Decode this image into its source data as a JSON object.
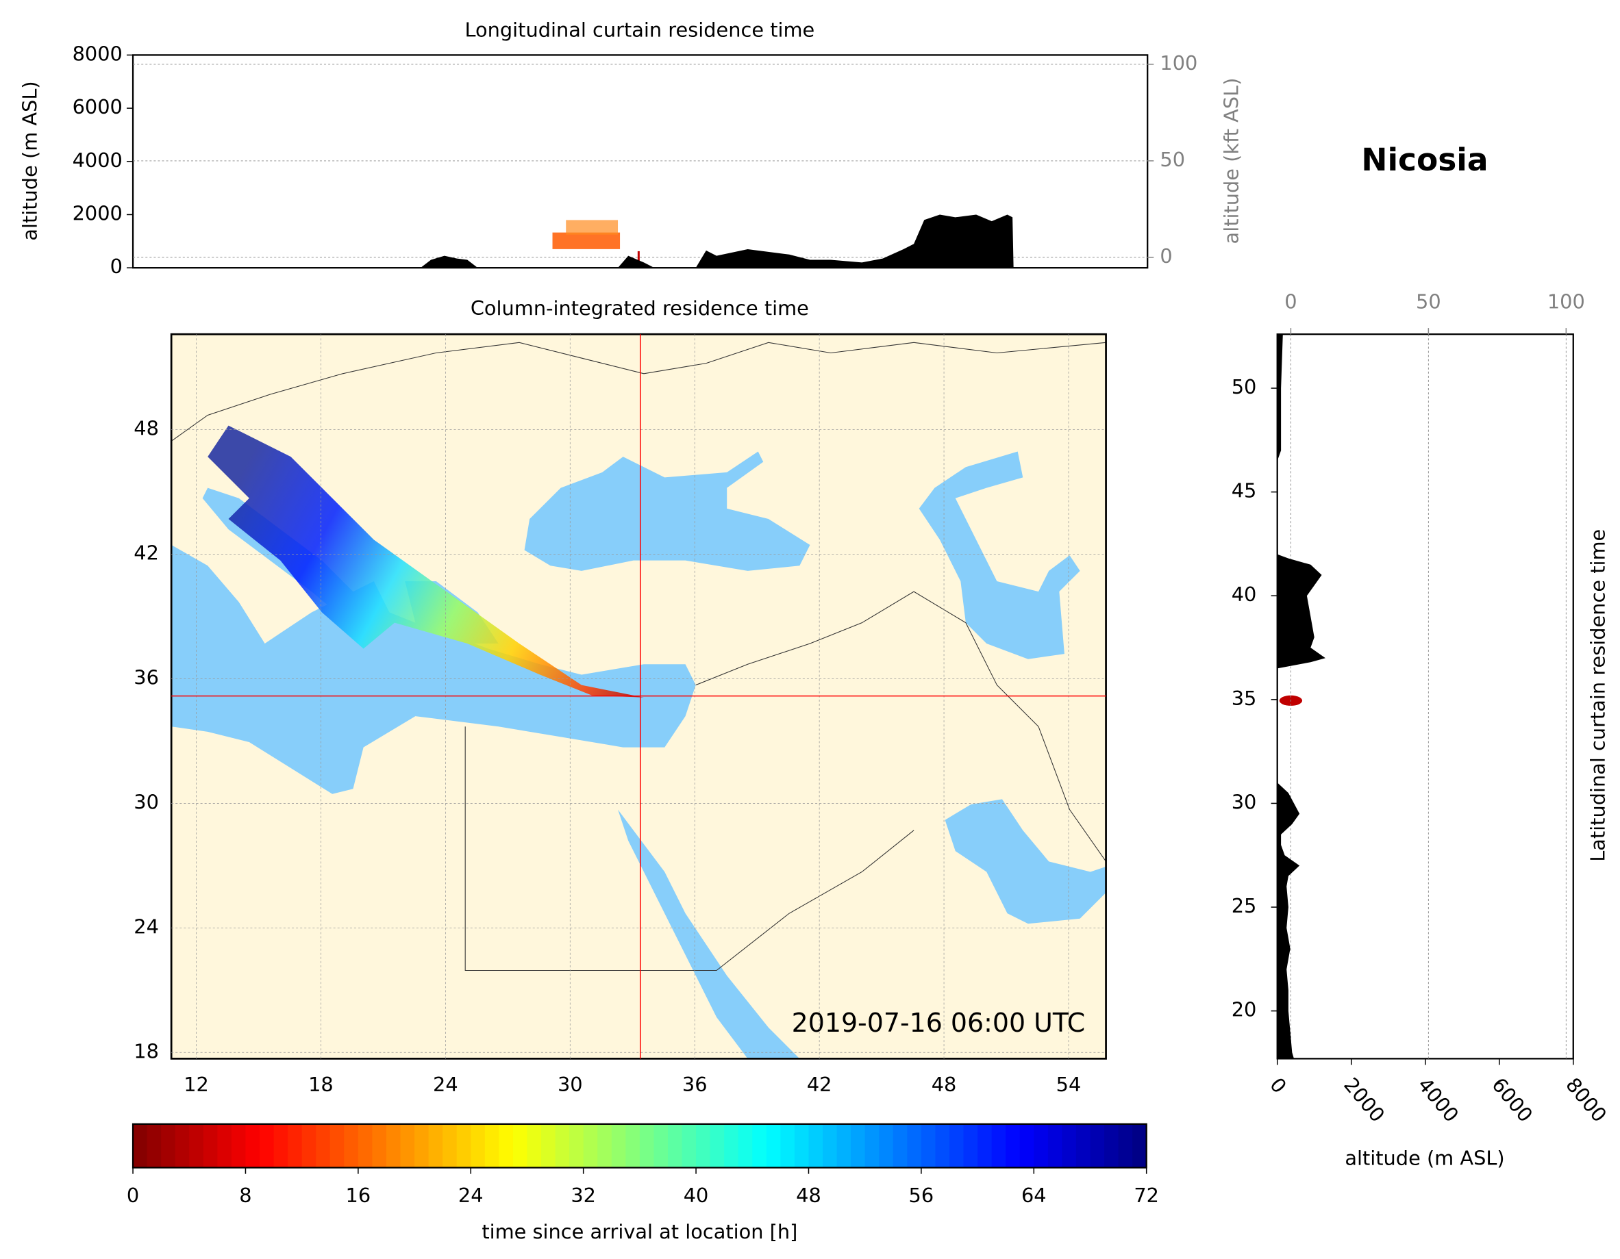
{
  "chart_data": [
    {
      "type": "area",
      "orientation": "vertical",
      "title": "Longitudinal curtain residence time",
      "ylabel": "altitude (m ASL)",
      "y2label": "altitude (kft ASL)",
      "xlim": [
        9.15,
        58.0
      ],
      "ylim": [
        0,
        8000
      ],
      "yticks": [
        0,
        2000,
        4000,
        6000,
        8000
      ],
      "y2lim": [
        -5.4,
        104.8
      ],
      "y2ticks": [
        0,
        50,
        100
      ],
      "grid": "y2",
      "color": "#000000",
      "x": [
        23.0,
        23.5,
        24.15,
        24.75,
        25.25,
        25.75,
        32.5,
        33.0,
        33.75,
        34.25,
        36.25,
        36.75,
        37.25,
        38.75,
        40.75,
        41.75,
        42.75,
        44.25,
        45.25,
        46.25,
        46.75,
        47.25,
        48.0,
        48.75,
        49.75,
        50.5,
        51.25,
        51.5,
        51.55
      ],
      "values": [
        0,
        300,
        450,
        350,
        300,
        0,
        0,
        450,
        200,
        0,
        0,
        650,
        450,
        700,
        500,
        300,
        300,
        200,
        350,
        700,
        900,
        1800,
        2000,
        1900,
        2000,
        1750,
        2000,
        1900,
        0
      ]
    },
    {
      "type": "map",
      "title": "Column-integrated residence time",
      "xlim": [
        10.8,
        55.8
      ],
      "ylim": [
        17.7,
        52.6
      ],
      "xticks": [
        12,
        18,
        24,
        30,
        36,
        42,
        48,
        54
      ],
      "yticks": [
        18,
        24,
        30,
        36,
        42,
        48
      ],
      "grid": true,
      "annotation": "2019-07-16 06:00 UTC",
      "location": {
        "name": "Nicosia",
        "x": 33.38,
        "y": 35.17,
        "color": "#ff0000"
      }
    },
    {
      "type": "area",
      "orientation": "horizontal",
      "title": "Latitudinal curtain residence time",
      "xlabel": "altitude (m ASL)",
      "xlim": [
        0,
        8000
      ],
      "xticks": [
        0,
        2000,
        4000,
        6000,
        8000
      ],
      "x2lim": [
        -4.9,
        102.6
      ],
      "x2ticks": [
        0,
        50,
        100
      ],
      "grid": "x2",
      "color": "#000000",
      "ylim": [
        17.7,
        52.6
      ],
      "yticks": [
        20,
        25,
        30,
        35,
        40,
        45,
        50
      ],
      "y": [
        52.6,
        50,
        47,
        46.5,
        42,
        41.8,
        41.5,
        41,
        40.5,
        40,
        39,
        38,
        37.5,
        37,
        36.8,
        36.5,
        31,
        30.5,
        30,
        29.5,
        29,
        28.5,
        28,
        27.5,
        27,
        26.5,
        26,
        25,
        24,
        23,
        22,
        21,
        20,
        19,
        18,
        17.7
      ],
      "values": [
        150,
        100,
        100,
        0,
        0,
        300,
        900,
        1200,
        1000,
        800,
        900,
        1000,
        900,
        1300,
        900,
        0,
        0,
        300,
        450,
        600,
        400,
        100,
        100,
        200,
        600,
        300,
        250,
        300,
        250,
        350,
        250,
        300,
        300,
        350,
        400,
        450
      ]
    },
    {
      "type": "colorbar",
      "xlabel": "time since arrival at location [h]",
      "xlim": [
        0,
        72
      ],
      "xticks": [
        0,
        8,
        16,
        24,
        32,
        40,
        48,
        56,
        64,
        72
      ],
      "colormap": "jet_r"
    }
  ]
}
